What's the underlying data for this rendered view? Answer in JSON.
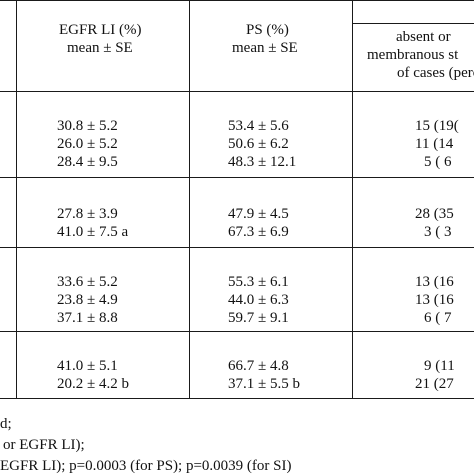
{
  "headers": {
    "col1": [
      "EGFR LI (%)",
      "mean ± SE"
    ],
    "col2": [
      "PS (%)",
      "mean ± SE"
    ],
    "col3": [
      "absent or",
      "membranous st",
      "of cases (perc"
    ]
  },
  "groups": [
    {
      "rows": [
        {
          "egfr": "30.8 ± 5.2",
          "ps": "53.4 ± 5.6",
          "cases": "15 (19("
        },
        {
          "egfr": "26.0 ± 5.2",
          "ps": "50.6 ± 6.2",
          "cases": "11 (14"
        },
        {
          "egfr": "28.4 ± 9.5",
          "ps": "48.3 ± 12.1",
          "cases": "5 ( 6"
        }
      ]
    },
    {
      "rows": [
        {
          "egfr": "27.8 ± 3.9",
          "ps": "47.9 ± 4.5",
          "cases": "28 (35"
        },
        {
          "egfr": "41.0 ± 7.5 a",
          "ps": "67.3 ± 6.9",
          "cases": "3 ( 3"
        }
      ]
    },
    {
      "rows": [
        {
          "egfr": "33.6 ± 5.2",
          "ps": "55.3 ± 6.1",
          "cases": "13 (16"
        },
        {
          "egfr": "23.8 ± 4.9",
          "ps": "44.0 ± 6.3",
          "cases": "13 (16"
        },
        {
          "egfr": "37.1 ± 8.8",
          "ps": "59.7 ± 9.1",
          "cases": "6 ( 7"
        }
      ]
    },
    {
      "rows": [
        {
          "egfr": "41.0 ± 5.1",
          "ps": "66.7 ± 4.8",
          "cases": "9 (11"
        },
        {
          "egfr": "20.2 ± 4.2 b",
          "ps": "37.1 ± 5.5 b",
          "cases": "21 (27"
        }
      ]
    }
  ],
  "footnotes": [
    "d;",
    "or EGFR LI);",
    "EGFR LI); p=0.0003 (for PS); p=0.0039 (for SI)"
  ]
}
